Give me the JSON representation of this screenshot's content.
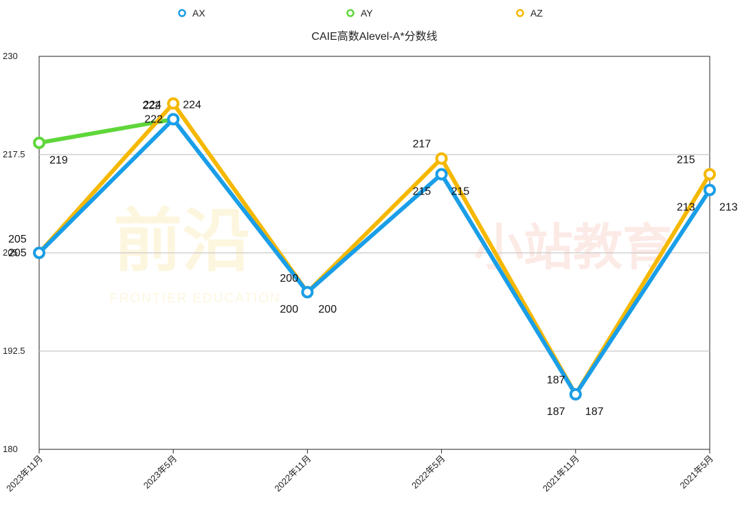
{
  "chart_data": {
    "type": "line",
    "title": "CAIE高数Alevel-A*分数线",
    "xlabel": "",
    "ylabel": "",
    "ylim": [
      180,
      230
    ],
    "yticks": [
      "180",
      "192.5",
      "205",
      "217.5",
      "230"
    ],
    "categories": [
      "2023年11月",
      "2023年5月",
      "2022年11月",
      "2022年5月",
      "2021年11月",
      "2021年5月"
    ],
    "legend_position": "top",
    "grid": true,
    "series": [
      {
        "name": "AX",
        "color": "#1a9ee8",
        "values": [
          205,
          222,
          200,
          215,
          187,
          213
        ]
      },
      {
        "name": "AY",
        "color": "#5fd63a",
        "values": [
          219,
          222,
          null,
          null,
          null,
          null
        ]
      },
      {
        "name": "AZ",
        "color": "#f5b800",
        "values": [
          205,
          224,
          200,
          217,
          187,
          215
        ]
      }
    ]
  },
  "watermark": {
    "left_text": "前沿",
    "left_subtext": "FRONTIER EDUCATION",
    "right_text": "小站教育"
  }
}
